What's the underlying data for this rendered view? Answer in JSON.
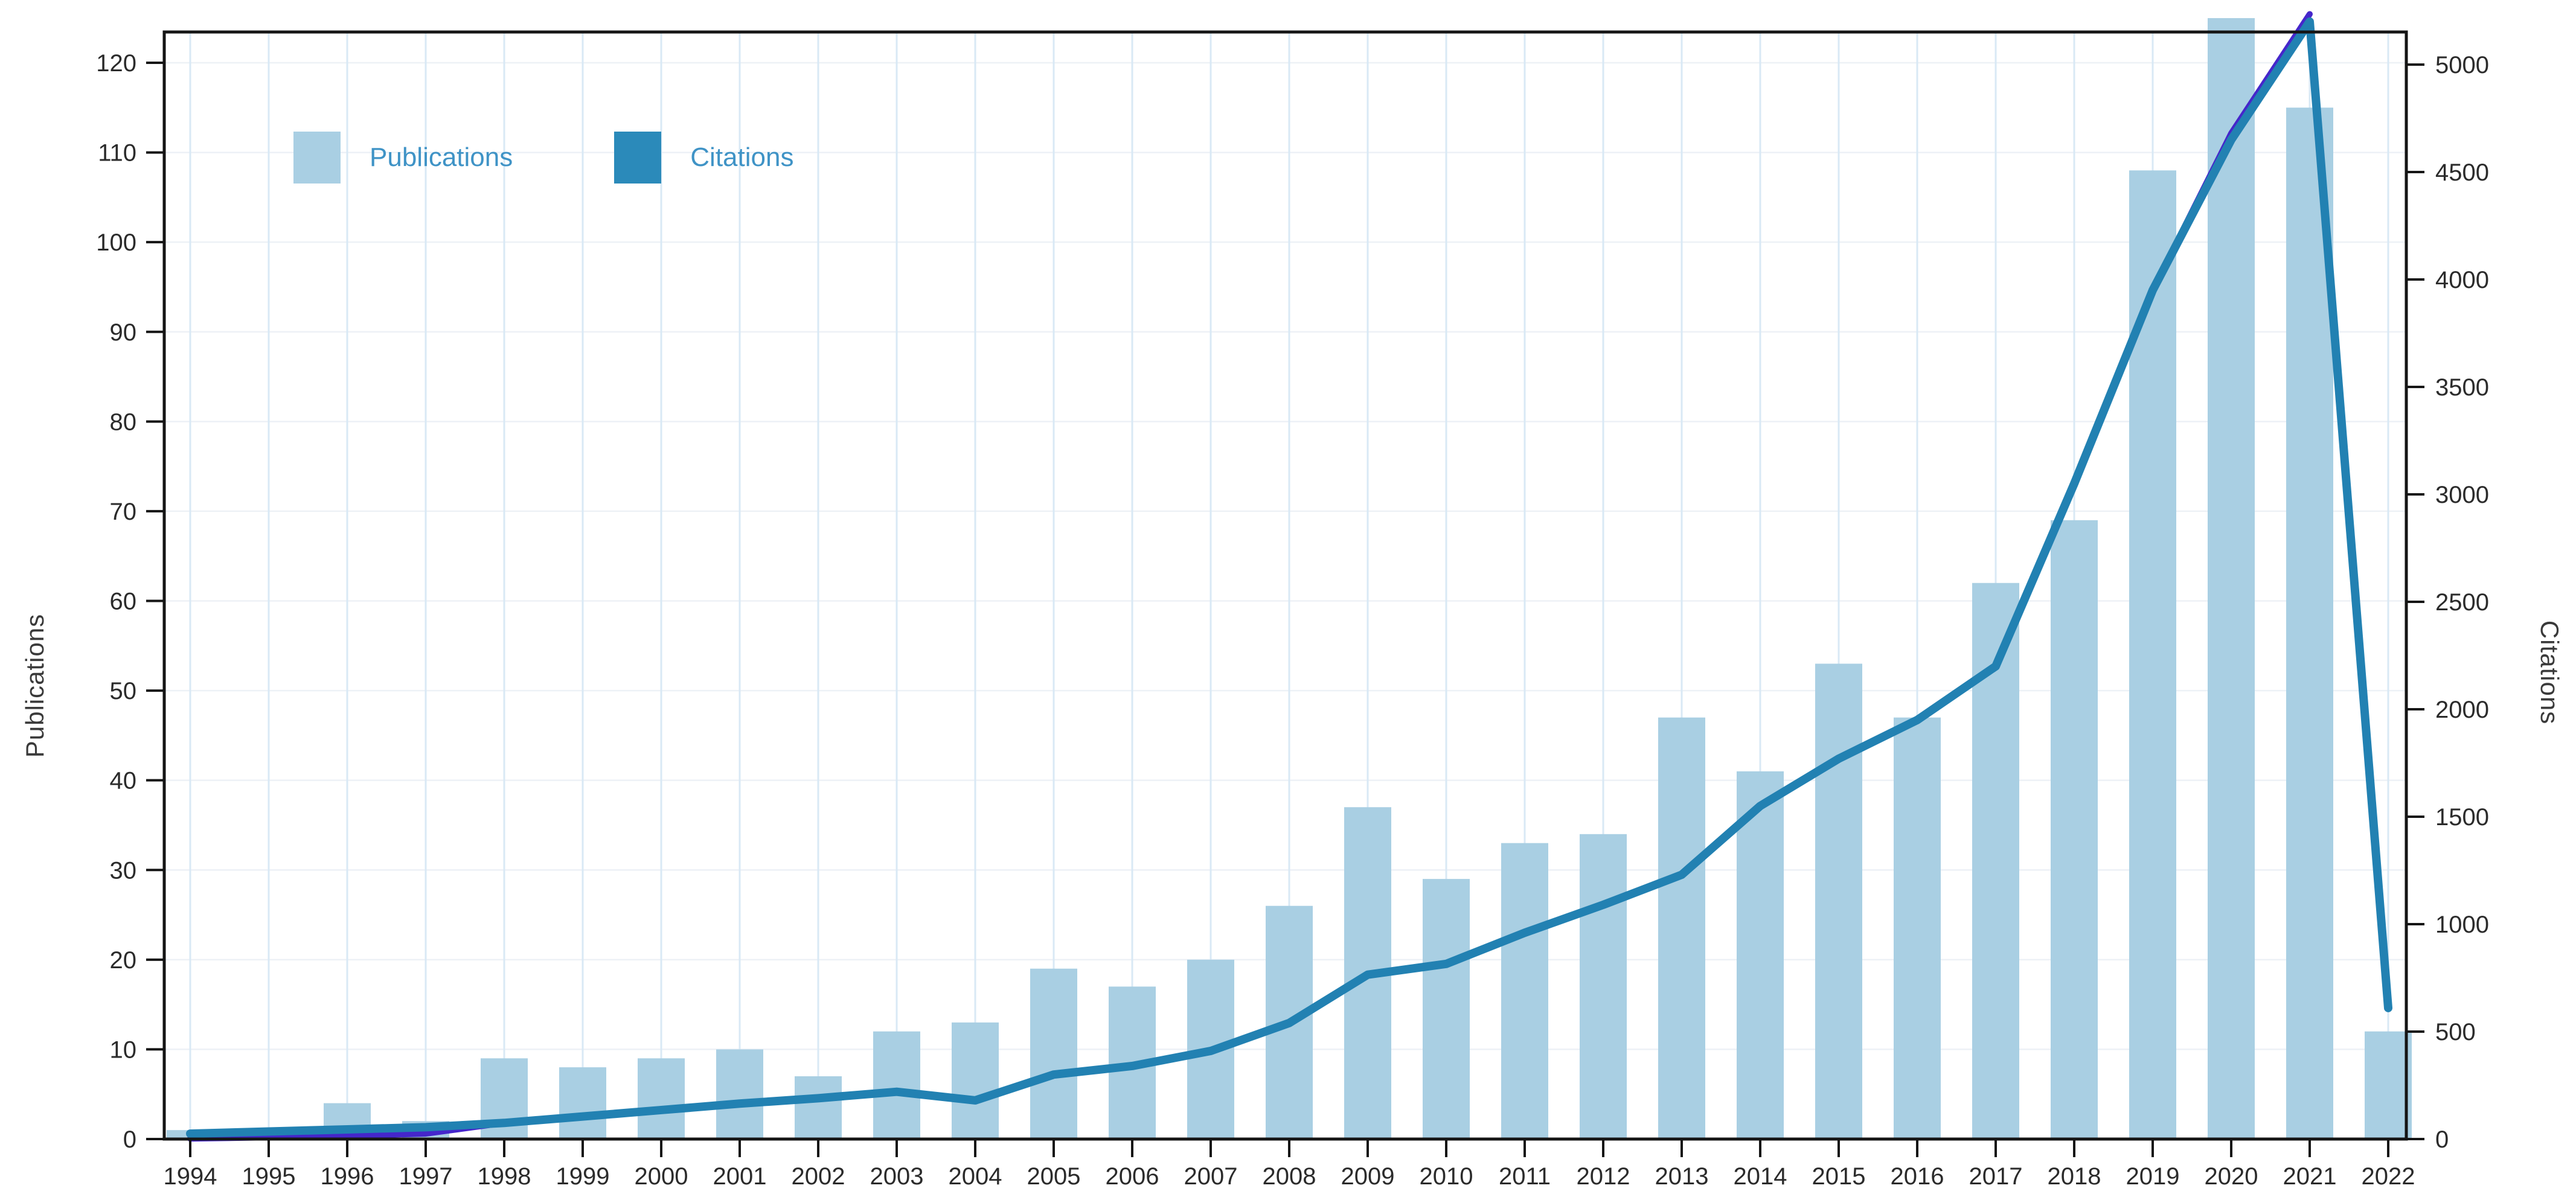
{
  "chart_data": {
    "type": "bar",
    "subtype": "combo-bar-line-dual-axis",
    "title": "",
    "categories": [
      "1994",
      "1995",
      "1996",
      "1997",
      "1998",
      "1999",
      "2000",
      "2001",
      "2002",
      "2003",
      "2004",
      "2005",
      "2006",
      "2007",
      "2008",
      "2009",
      "2010",
      "2011",
      "2012",
      "2013",
      "2014",
      "2015",
      "2016",
      "2017",
      "2018",
      "2019",
      "2020",
      "2021",
      "2022"
    ],
    "series": [
      {
        "name": "Publications",
        "type": "bar",
        "axis": "left",
        "color": "#a9cfe3",
        "values": [
          1,
          0,
          4,
          2,
          9,
          8,
          9,
          10,
          7,
          12,
          13,
          19,
          17,
          20,
          26,
          37,
          29,
          33,
          34,
          47,
          41,
          53,
          47,
          62,
          69,
          108,
          125,
          115,
          12
        ],
        "note": "2020 bar exceeds the axis maximum and is clipped at the top plot border"
      },
      {
        "name": "Citations",
        "type": "line",
        "axis": "right",
        "color": "#2281b2",
        "values": [
          25,
          35,
          45,
          55,
          75,
          105,
          135,
          165,
          190,
          220,
          180,
          300,
          340,
          410,
          540,
          765,
          815,
          960,
          1090,
          1230,
          1550,
          1770,
          1950,
          2200,
          3050,
          3950,
          4650,
          5200,
          610
        ]
      }
    ],
    "accent_overlay": {
      "description": "indigo accent line visible near zero at 1994-1997 and as a tip above the teal peak at 2021",
      "color": "#4526cb",
      "values": [
        2,
        8,
        15,
        25,
        null,
        null,
        null,
        null,
        null,
        null,
        null,
        null,
        null,
        null,
        null,
        null,
        null,
        null,
        null,
        null,
        null,
        null,
        null,
        null,
        null,
        null,
        4680,
        5235,
        null
      ]
    },
    "left_axis": {
      "title": "Publications",
      "min": 0,
      "max": 120,
      "tick_step": 10,
      "tick_labels": [
        "0",
        "10",
        "20",
        "30",
        "40",
        "50",
        "60",
        "70",
        "80",
        "90",
        "100",
        "110",
        "120"
      ]
    },
    "right_axis": {
      "title": "Citations",
      "min": 0,
      "max": 5000,
      "tick_step": 500,
      "tick_labels": [
        "0",
        "500",
        "1000",
        "1500",
        "2000",
        "2500",
        "3000",
        "3500",
        "4000",
        "4500",
        "5000"
      ]
    },
    "x_axis": {
      "tick_labels": [
        "1994",
        "1995",
        "1996",
        "1997",
        "1998",
        "1999",
        "2000",
        "2001",
        "2002",
        "2003",
        "2004",
        "2005",
        "2006",
        "2007",
        "2008",
        "2009",
        "2010",
        "2011",
        "2012",
        "2013",
        "2014",
        "2015",
        "2016",
        "2017",
        "2018",
        "2019",
        "2020",
        "2021",
        "2022"
      ]
    },
    "legend": {
      "position": "top-left-inside",
      "items": [
        {
          "label": "Publications",
          "swatch_color": "#a9cfe3"
        },
        {
          "label": "Citations",
          "swatch_color": "#2b8aba"
        }
      ]
    },
    "grid": {
      "vertical": true,
      "vertical_color": "#d9e9f5",
      "horizontal": true,
      "horizontal_color": "#edf1f6"
    },
    "colors": {
      "plot_border": "#151515",
      "tick_text": "#2b2b2b",
      "background": "#ffffff"
    },
    "ylim_left": [
      0,
      123
    ],
    "ylim_right": [
      0,
      5150
    ]
  }
}
